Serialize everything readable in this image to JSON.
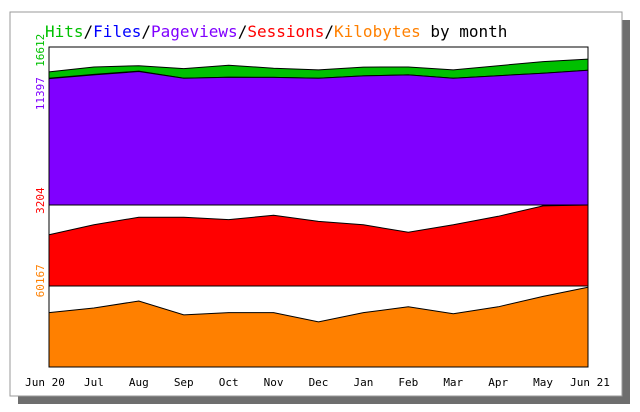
{
  "title_parts": [
    {
      "text": "Hits",
      "color": "#00c000"
    },
    {
      "text": "/",
      "color": "#000000"
    },
    {
      "text": "Files",
      "color": "#0000ff"
    },
    {
      "text": "/",
      "color": "#000000"
    },
    {
      "text": "Pageviews",
      "color": "#8000ff"
    },
    {
      "text": "/",
      "color": "#000000"
    },
    {
      "text": "Sessions",
      "color": "#ff0000"
    },
    {
      "text": "/",
      "color": "#000000"
    },
    {
      "text": "Kilobytes",
      "color": "#ff8000"
    },
    {
      "text": " by month",
      "color": "#000000"
    }
  ],
  "chart_data": {
    "type": "area",
    "categories": [
      "Jun 20",
      "Jul",
      "Aug",
      "Sep",
      "Oct",
      "Nov",
      "Dec",
      "Jan",
      "Feb",
      "Mar",
      "Apr",
      "May",
      "Jun 21"
    ],
    "panels": [
      {
        "id": "hits",
        "y_ticks": [
          {
            "label": "16612",
            "value": 16612,
            "color": "#00c000"
          },
          {
            "label": "11397",
            "value": 11397,
            "color": "#8000ff"
          }
        ],
        "ylim": [
          0,
          19000
        ],
        "series": [
          {
            "name": "Hits",
            "color": "#00c000",
            "values": [
              16000,
              16600,
              16750,
              16400,
              16800,
              16450,
              16250,
              16580,
              16600,
              16250,
              16750,
              17250,
              17550
            ]
          },
          {
            "name": "Files",
            "color": "#0000ff",
            "values": [
              15250,
              15700,
              16100,
              15250,
              15360,
              15340,
              15250,
              15520,
              15650,
              15250,
              15550,
              15850,
              16200
            ]
          },
          {
            "name": "Pageviews",
            "color": "#8000ff",
            "values": [
              15200,
              15650,
              16050,
              15250,
              15360,
              15340,
              15250,
              15520,
              15650,
              15250,
              15550,
              15850,
              16200
            ]
          }
        ]
      },
      {
        "id": "sessions",
        "y_ticks": [
          {
            "label": "3204",
            "value": 3204,
            "color": "#ff0000"
          }
        ],
        "ylim": [
          0,
          3600
        ],
        "series": [
          {
            "name": "Sessions",
            "color": "#ff0000",
            "values": [
              2280,
              2720,
              3060,
              3060,
              2950,
              3140,
              2870,
              2720,
              2390,
              2720,
              3100,
              3560,
              3600
            ]
          }
        ]
      },
      {
        "id": "kilobytes",
        "y_ticks": [
          {
            "label": "60167",
            "value": 60167,
            "color": "#ff8000"
          }
        ],
        "ylim": [
          0,
          70000
        ],
        "series": [
          {
            "name": "Kilobytes",
            "color": "#ff8000",
            "values": [
              47000,
              51000,
              57000,
              45000,
              47000,
              47000,
              39000,
              47000,
              52000,
              46000,
              52000,
              61000,
              69000
            ]
          }
        ]
      }
    ]
  }
}
